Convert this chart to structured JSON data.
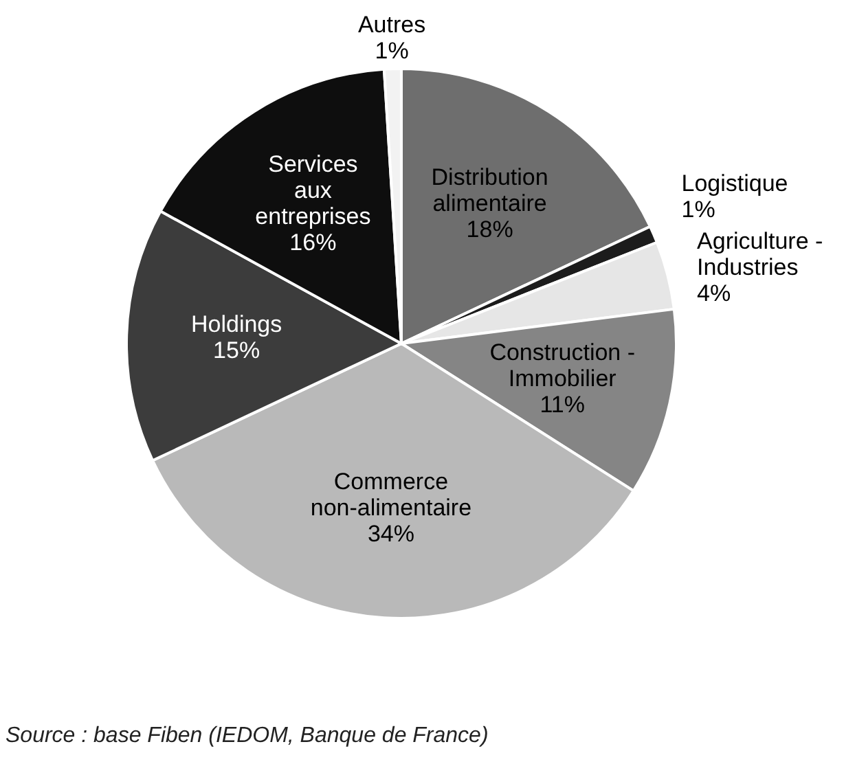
{
  "chart_data": {
    "type": "pie",
    "categories": [
      "Distribution alimentaire",
      "Logistique",
      "Agriculture - Industries",
      "Construction - Immobilier",
      "Commerce non-alimentaire",
      "Holdings",
      "Services aux entreprises",
      "Autres"
    ],
    "values": [
      18,
      1,
      4,
      11,
      34,
      15,
      16,
      1
    ],
    "colors": [
      "#6e6e6e",
      "#1c1c1c",
      "#e6e6e6",
      "#858585",
      "#b9b9b9",
      "#3c3c3c",
      "#0e0e0e",
      "#f2f2f2"
    ],
    "value_labels": [
      "18%",
      "1%",
      "4%",
      "11%",
      "34%",
      "15%",
      "16%",
      "1%"
    ],
    "legend": false,
    "annotations": [
      "Source : base Fiben (IEDOM, Banque de France)"
    ]
  }
}
